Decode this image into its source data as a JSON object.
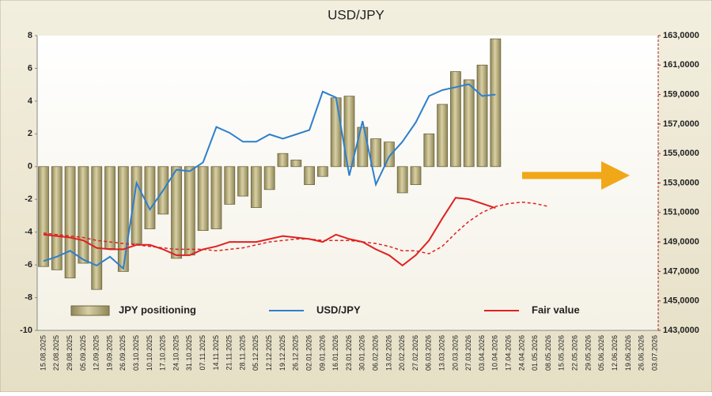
{
  "chart_data": {
    "type": "bar-line",
    "title": "USD/JPY",
    "categories": [
      "15.08.2025",
      "22.08.2025",
      "29.08.2025",
      "05.09.2025",
      "12.09.2025",
      "19.09.2025",
      "26.09.2025",
      "03.10.2025",
      "10.10.2025",
      "17.10.2025",
      "24.10.2025",
      "31.10.2025",
      "07.11.2025",
      "14.11.2025",
      "21.11.2025",
      "28.11.2025",
      "05.12.2025",
      "12.12.2025",
      "19.12.2025",
      "26.12.2025",
      "02.01.2026",
      "09.01.2026",
      "16.01.2026",
      "23.01.2026",
      "30.01.2026",
      "06.02.2026",
      "13.02.2026",
      "20.02.2026",
      "27.02.2026",
      "06.03.2026",
      "13.03.2026",
      "20.03.2026",
      "27.03.2026",
      "03.04.2026",
      "10.04.2026",
      "17.04.2026",
      "24.04.2026",
      "01.05.2026",
      "08.05.2026",
      "15.05.2026",
      "22.05.2026",
      "29.05.2026",
      "05.06.2026",
      "12.06.2026",
      "19.06.2026",
      "26.06.2026",
      "03.07.2026"
    ],
    "series": [
      {
        "name": "JPY positioning",
        "type": "bar",
        "axis": "y",
        "color": "#b8ae7c",
        "values": [
          -6.1,
          -6.3,
          -6.8,
          -5.9,
          -7.5,
          -5.0,
          -6.4,
          -4.7,
          -3.8,
          -2.9,
          -5.6,
          -5.4,
          -3.9,
          -3.8,
          -2.3,
          -1.8,
          -2.5,
          -1.4,
          0.8,
          0.4,
          -1.1,
          -0.6,
          4.2,
          4.3,
          2.4,
          1.7,
          1.5,
          -1.6,
          -1.1,
          2.0,
          3.8,
          5.8,
          5.3,
          6.2,
          7.8,
          null,
          null,
          null,
          null,
          null,
          null,
          null,
          null,
          null,
          null,
          null,
          null
        ]
      },
      {
        "name": "USD/JPY",
        "type": "line",
        "axis": "y2",
        "color": "#2e7fcc",
        "values": [
          147.7,
          148.0,
          148.4,
          147.8,
          147.4,
          148.0,
          147.2,
          153.0,
          151.2,
          152.5,
          153.9,
          153.8,
          154.4,
          156.8,
          156.4,
          155.8,
          155.8,
          156.3,
          156.0,
          156.3,
          156.6,
          159.2,
          158.8,
          153.5,
          157.2,
          152.9,
          154.8,
          155.8,
          157.1,
          158.9,
          159.3,
          159.5,
          159.7,
          158.9,
          159.0,
          null,
          null,
          null,
          null,
          null,
          null,
          null,
          null,
          null,
          null,
          null,
          null
        ]
      },
      {
        "name": "Fair value",
        "type": "line",
        "axis": "y2",
        "color": "#e02020",
        "values": [
          149.5,
          149.4,
          149.3,
          149.1,
          148.6,
          148.5,
          148.5,
          148.8,
          148.8,
          148.5,
          148.1,
          148.1,
          148.5,
          148.7,
          149.0,
          149.0,
          149.0,
          149.2,
          149.4,
          149.3,
          149.2,
          149.0,
          149.5,
          149.2,
          149.0,
          148.5,
          148.1,
          147.4,
          148.1,
          149.1,
          150.6,
          152.0,
          151.9,
          151.6,
          151.3,
          null,
          null,
          null,
          null,
          null,
          null,
          null,
          null,
          null,
          null,
          null,
          null
        ]
      },
      {
        "type": "line",
        "axis": "y2",
        "color": "#e02020",
        "dashed": true,
        "values": [
          149.6,
          149.5,
          149.4,
          149.3,
          149.1,
          149.0,
          148.9,
          148.8,
          148.7,
          148.6,
          148.5,
          148.5,
          148.5,
          148.4,
          148.5,
          148.6,
          148.8,
          149.0,
          149.1,
          149.2,
          149.2,
          149.1,
          149.1,
          149.1,
          149.0,
          148.9,
          148.7,
          148.4,
          148.4,
          148.2,
          148.7,
          149.6,
          150.4,
          151.0,
          151.4,
          151.6,
          151.7,
          151.6,
          151.4,
          null,
          null,
          null,
          null,
          null,
          null,
          null,
          null
        ]
      }
    ],
    "ylim": [
      -10,
      8
    ],
    "yticks": [
      -10,
      -8,
      -6,
      -4,
      -2,
      0,
      2,
      4,
      6,
      8
    ],
    "y2lim": [
      143,
      163
    ],
    "y2ticks": [
      {
        "value": 143,
        "label": "143,0000"
      },
      {
        "value": 145,
        "label": "145,0000"
      },
      {
        "value": 147,
        "label": "147,0000"
      },
      {
        "value": 149,
        "label": "149,0000"
      },
      {
        "value": 151,
        "label": "151,0000"
      },
      {
        "value": 153,
        "label": "153,0000"
      },
      {
        "value": 155,
        "label": "155,0000"
      },
      {
        "value": 157,
        "label": "157,0000"
      },
      {
        "value": 159,
        "label": "159,0000"
      },
      {
        "value": 161,
        "label": "161,0000"
      },
      {
        "value": 163,
        "label": "163,0000"
      }
    ]
  }
}
